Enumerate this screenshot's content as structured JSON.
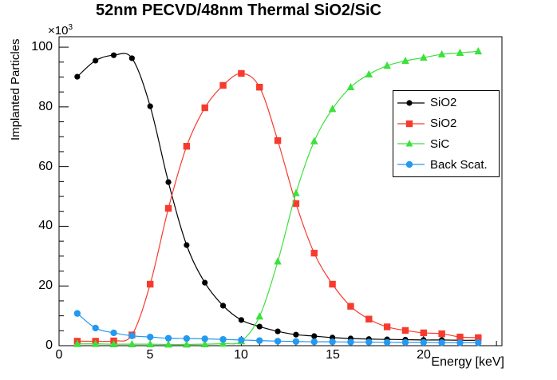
{
  "title": "52nm PECVD/48nm Thermal SiO2/SiC",
  "chart_data": {
    "type": "line",
    "title": "52nm PECVD/48nm Thermal SiO2/SiC",
    "xlabel": "Energy [keV]",
    "ylabel": "Implanted Particles",
    "y_multiplier": {
      "base": "×10",
      "exp": "3"
    },
    "values_unit": "particles ×10³",
    "xlim": [
      0,
      24.3
    ],
    "ylim": [
      0,
      103.5
    ],
    "grid": false,
    "legend_position": "right-middle",
    "x": [
      1,
      2,
      3,
      4,
      5,
      6,
      7,
      8,
      9,
      10,
      11,
      12,
      13,
      14,
      15,
      16,
      17,
      18,
      19,
      20,
      21,
      22,
      23
    ],
    "xticks": {
      "major": [
        0,
        5,
        10,
        15,
        20
      ],
      "minor_step": 1,
      "labels": [
        "0",
        "5",
        "10",
        "15",
        "20"
      ]
    },
    "yticks": {
      "major": [
        0,
        20,
        40,
        60,
        80,
        100
      ],
      "minor_step": 5,
      "labels": [
        "0",
        "20",
        "40",
        "60",
        "80",
        "100"
      ]
    },
    "series": [
      {
        "name": "SiO2",
        "marker": "circle",
        "marker_size": 3.6,
        "color": "#000000",
        "values": [
          90.1,
          95.5,
          97.3,
          96.3,
          80.2,
          54.8,
          33.7,
          21.1,
          13.4,
          8.6,
          6.4,
          4.8,
          3.7,
          3.2,
          2.7,
          2.4,
          2.2,
          2.1,
          2.0,
          1.9,
          1.9,
          1.8,
          1.8
        ]
      },
      {
        "name": "SiO2",
        "marker": "square",
        "marker_size": 4.2,
        "color": "#f63b2e",
        "values": [
          1.5,
          1.5,
          1.6,
          3.6,
          20.6,
          46.0,
          66.8,
          79.7,
          87.2,
          91.2,
          86.6,
          68.7,
          47.6,
          31.0,
          20.6,
          13.2,
          8.9,
          6.3,
          5.1,
          4.3,
          4.0,
          2.9,
          2.7
        ]
      },
      {
        "name": "SiC",
        "marker": "triangle",
        "marker_size": 4.8,
        "color": "#3ce13c",
        "values": [
          0.6,
          0.6,
          0.5,
          0.5,
          0.5,
          0.4,
          0.4,
          0.5,
          0.7,
          1.5,
          9.8,
          28.2,
          51.1,
          68.5,
          79.3,
          86.6,
          90.9,
          93.8,
          95.4,
          96.5,
          97.6,
          98.1,
          98.6
        ]
      },
      {
        "name": "Back Scat.",
        "marker": "circle",
        "marker_size": 4.2,
        "color": "#2499f0",
        "values": [
          10.8,
          5.9,
          4.3,
          3.3,
          2.9,
          2.5,
          2.4,
          2.3,
          2.1,
          1.9,
          1.7,
          1.5,
          1.4,
          1.3,
          1.3,
          1.2,
          1.2,
          1.1,
          1.1,
          1.1,
          1.0,
          1.0,
          1.0
        ]
      }
    ]
  }
}
